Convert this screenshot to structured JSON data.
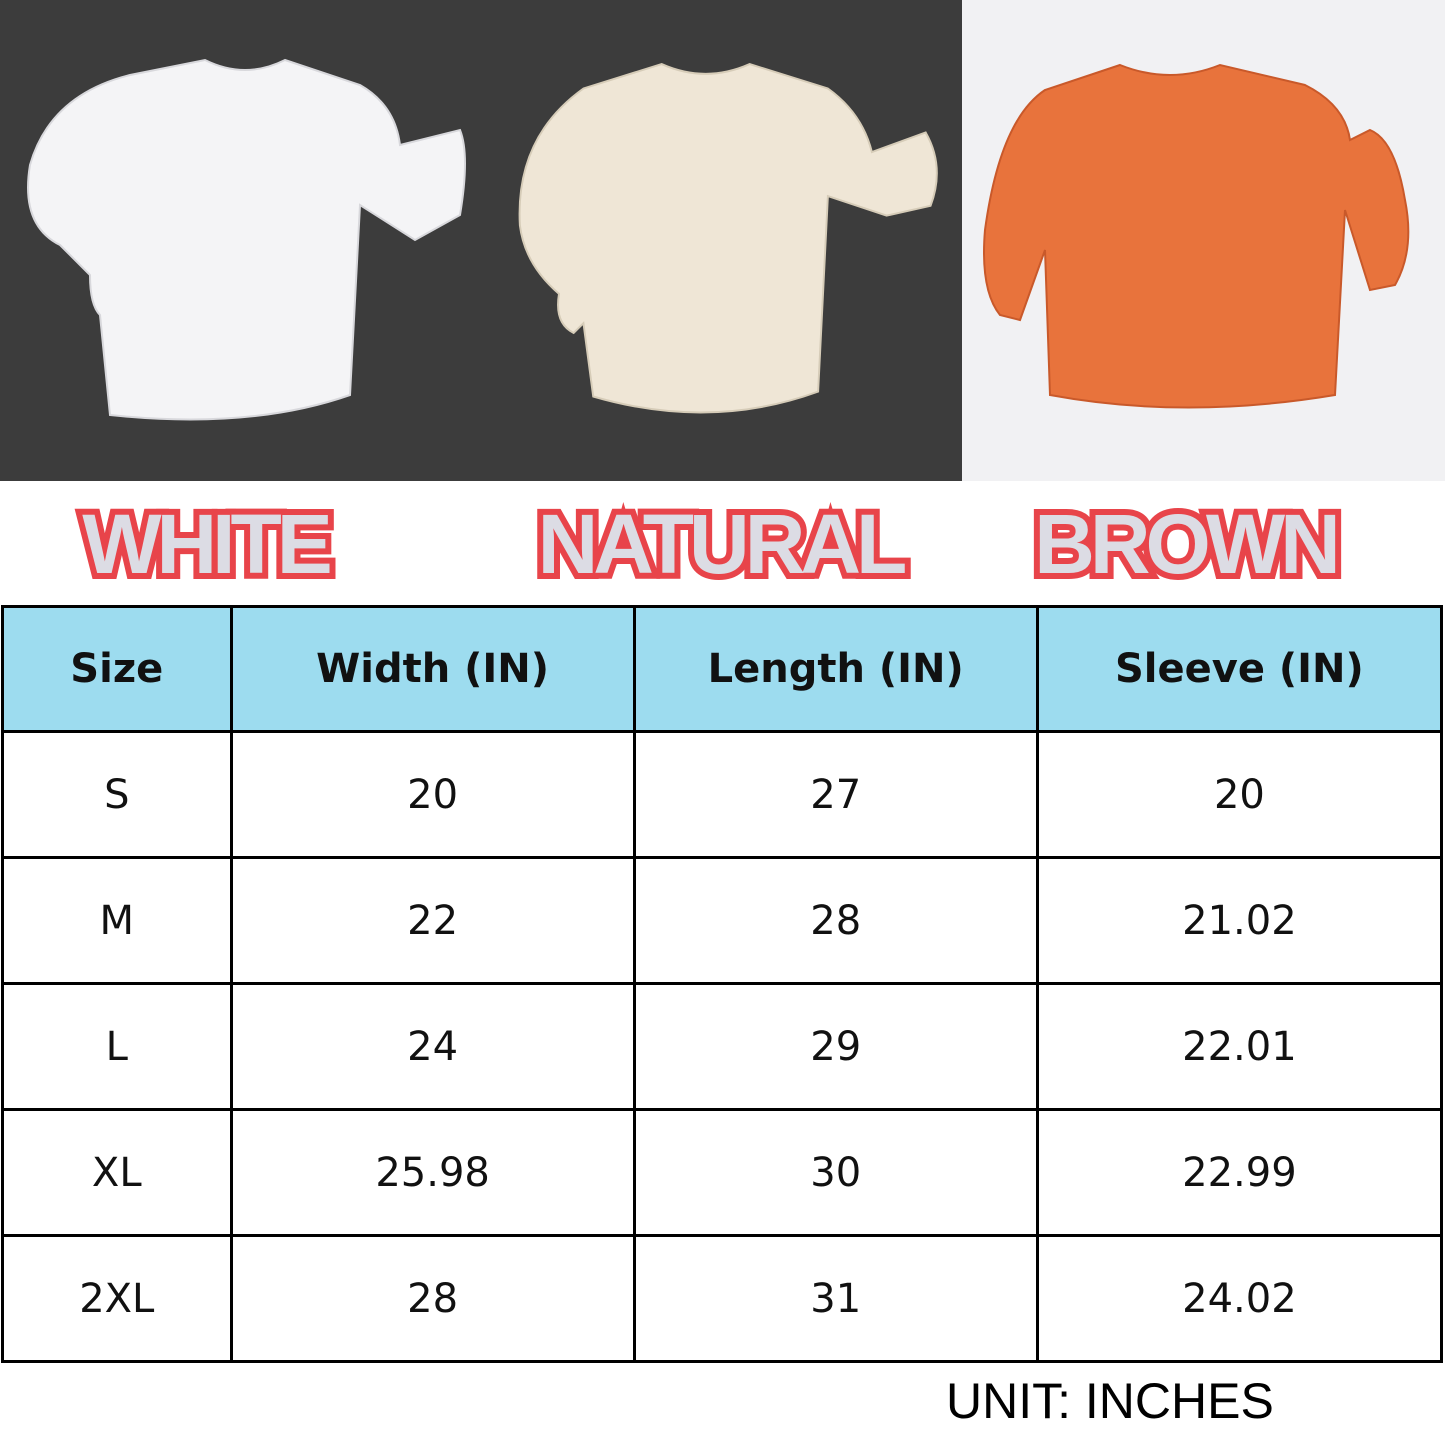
{
  "colors": {
    "photo_bg_dark": "#3c3c3c",
    "photo_bg_light": "#f1f1f3",
    "white_shirt": "#f4f4f6",
    "natural_shirt": "#efe6d6",
    "brown_shirt": "#e8733c",
    "label_outline": "#e8444a",
    "label_fill": "#dcdce4",
    "header_bg": "#9ddcef"
  },
  "color_labels": [
    "WHITE",
    "NATURAL",
    "BROWN"
  ],
  "table": {
    "headers": [
      "Size",
      "Width (IN)",
      "Length (IN)",
      "Sleeve (IN)"
    ],
    "rows": [
      [
        "S",
        "20",
        "27",
        "20"
      ],
      [
        "M",
        "22",
        "28",
        "21.02"
      ],
      [
        "L",
        "24",
        "29",
        "22.01"
      ],
      [
        "XL",
        "25.98",
        "30",
        "22.99"
      ],
      [
        "2XL",
        "28",
        "31",
        "24.02"
      ]
    ]
  },
  "unit_note": "UNIT: INCHES"
}
